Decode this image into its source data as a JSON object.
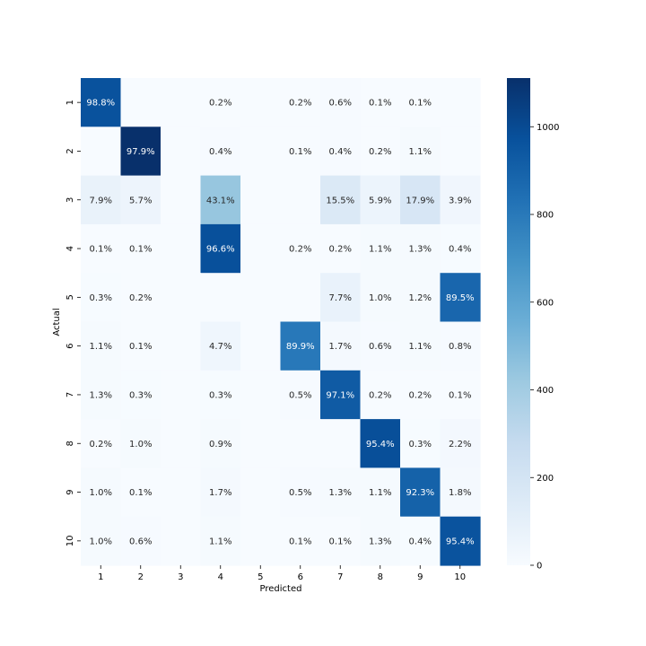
{
  "chart_data": {
    "type": "heatmap",
    "title": "",
    "xlabel": "Predicted",
    "ylabel": "Actual",
    "x_categories": [
      "1",
      "2",
      "3",
      "4",
      "5",
      "6",
      "7",
      "8",
      "9",
      "10"
    ],
    "y_categories": [
      "1",
      "2",
      "3",
      "4",
      "5",
      "6",
      "7",
      "8",
      "9",
      "10"
    ],
    "cell_labels": [
      [
        "98.8%",
        "",
        "",
        "0.2%",
        "",
        "0.2%",
        "0.6%",
        "0.1%",
        "0.1%",
        ""
      ],
      [
        "",
        "97.9%",
        "",
        "0.4%",
        "",
        "0.1%",
        "0.4%",
        "0.2%",
        "1.1%",
        ""
      ],
      [
        "7.9%",
        "5.7%",
        "",
        "43.1%",
        "",
        "",
        "15.5%",
        "5.9%",
        "17.9%",
        "3.9%"
      ],
      [
        "0.1%",
        "0.1%",
        "",
        "96.6%",
        "",
        "0.2%",
        "0.2%",
        "1.1%",
        "1.3%",
        "0.4%"
      ],
      [
        "0.3%",
        "0.2%",
        "",
        "",
        "",
        "",
        "7.7%",
        "1.0%",
        "1.2%",
        "89.5%"
      ],
      [
        "1.1%",
        "0.1%",
        "",
        "4.7%",
        "",
        "89.9%",
        "1.7%",
        "0.6%",
        "1.1%",
        "0.8%"
      ],
      [
        "1.3%",
        "0.3%",
        "",
        "0.3%",
        "",
        "0.5%",
        "97.1%",
        "0.2%",
        "0.2%",
        "0.1%"
      ],
      [
        "0.2%",
        "1.0%",
        "",
        "0.9%",
        "",
        "",
        "",
        "95.4%",
        "0.3%",
        "2.2%"
      ],
      [
        "1.0%",
        "0.1%",
        "",
        "1.7%",
        "",
        "0.5%",
        "1.3%",
        "1.1%",
        "92.3%",
        "1.8%"
      ],
      [
        "1.0%",
        "0.6%",
        "",
        "1.1%",
        "",
        "0.1%",
        "0.1%",
        "1.3%",
        "0.4%",
        "95.4%"
      ]
    ],
    "counts": [
      [
        968,
        0,
        0,
        2,
        0,
        2,
        6,
        1,
        1,
        0
      ],
      [
        0,
        1111,
        0,
        5,
        0,
        1,
        5,
        2,
        12,
        0
      ],
      [
        80,
        58,
        0,
        437,
        0,
        0,
        157,
        60,
        182,
        40
      ],
      [
        1,
        1,
        0,
        976,
        0,
        2,
        2,
        11,
        13,
        4
      ],
      [
        3,
        2,
        0,
        0,
        0,
        0,
        76,
        10,
        12,
        879
      ],
      [
        10,
        1,
        0,
        42,
        0,
        802,
        15,
        5,
        10,
        7
      ],
      [
        12,
        3,
        0,
        3,
        0,
        5,
        930,
        2,
        2,
        1
      ],
      [
        2,
        10,
        0,
        9,
        0,
        0,
        0,
        981,
        3,
        23
      ],
      [
        10,
        1,
        0,
        17,
        0,
        5,
        13,
        11,
        899,
        18
      ],
      [
        10,
        6,
        0,
        11,
        0,
        1,
        1,
        13,
        4,
        963
      ]
    ],
    "colorscale": {
      "name": "Blues",
      "vmin": 0,
      "vmax": 1111,
      "ticks": [
        0,
        200,
        400,
        600,
        800,
        1000
      ],
      "tick_labels": [
        "0",
        "200",
        "400",
        "600",
        "800",
        "1000"
      ]
    },
    "grid": false,
    "colorbar_position": "right"
  }
}
